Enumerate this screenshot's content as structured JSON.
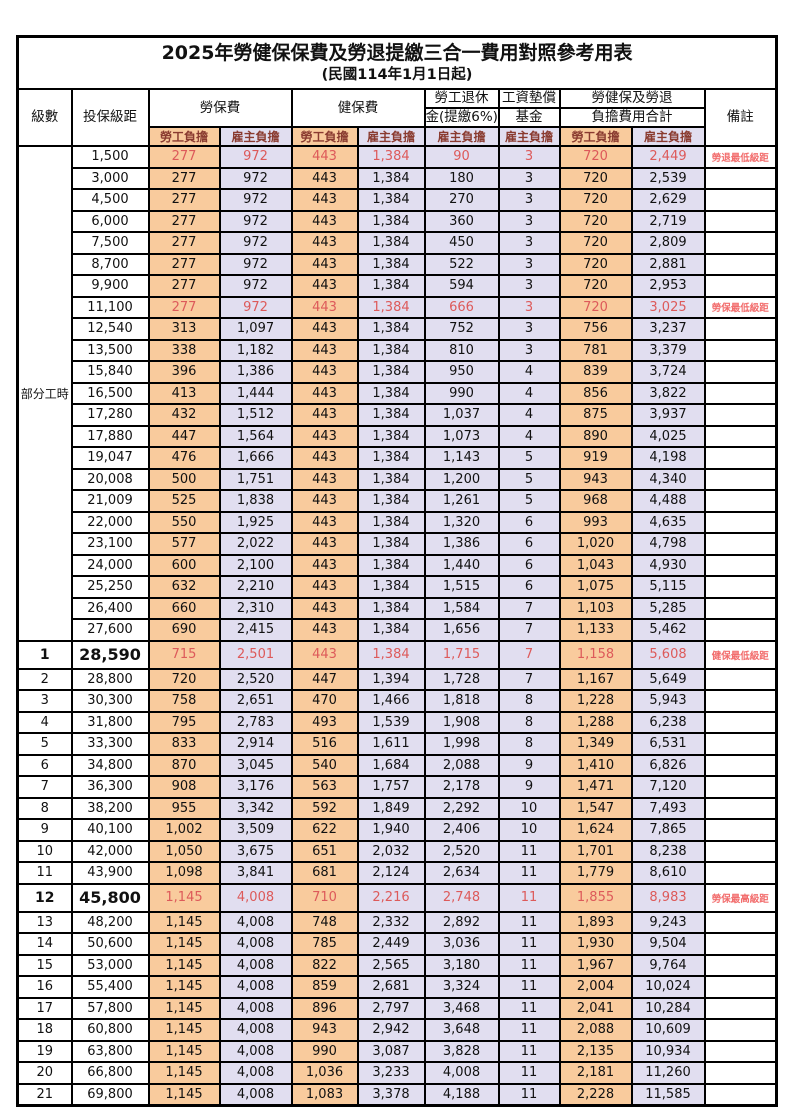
{
  "title": "2025年勞健保保費及勞退提繳三合一費用對照參考用表",
  "subtitle": "(民國114年1月1日起)",
  "columns": {
    "level": "級數",
    "bracket": "投保級距",
    "labor_group": "勞保費",
    "health_group": "健保費",
    "pension_line1": "勞工退休",
    "pension_line2": "金(提繳6%)",
    "fund_line1": "工資墊償",
    "fund_line2": "基金",
    "total_line1": "勞健保及勞退",
    "total_line2": "負擔費用合計",
    "note": "備註",
    "employee": "勞工負擔",
    "employer": "雇主負擔"
  },
  "part_time_label": "部分工時",
  "colors": {
    "employee_bg": "#f9cb9d",
    "employer_bg": "#e1def0",
    "highlight_value_red": "#dd5a5a",
    "note_red": "#f26d6d",
    "subheader_text": "#8a3b30",
    "border": "#000000"
  },
  "rows": [
    {
      "level": "",
      "bracket": "1,500",
      "labor_emp": "277",
      "labor_er": "972",
      "health_emp": "443",
      "health_er": "1,384",
      "pension": "90",
      "fund": "3",
      "total_emp": "720",
      "total_er": "2,449",
      "note": "勞退最低級距",
      "highlight": true,
      "emph": false
    },
    {
      "level": "",
      "bracket": "3,000",
      "labor_emp": "277",
      "labor_er": "972",
      "health_emp": "443",
      "health_er": "1,384",
      "pension": "180",
      "fund": "3",
      "total_emp": "720",
      "total_er": "2,539",
      "note": "",
      "highlight": false,
      "emph": false
    },
    {
      "level": "",
      "bracket": "4,500",
      "labor_emp": "277",
      "labor_er": "972",
      "health_emp": "443",
      "health_er": "1,384",
      "pension": "270",
      "fund": "3",
      "total_emp": "720",
      "total_er": "2,629",
      "note": "",
      "highlight": false,
      "emph": false
    },
    {
      "level": "",
      "bracket": "6,000",
      "labor_emp": "277",
      "labor_er": "972",
      "health_emp": "443",
      "health_er": "1,384",
      "pension": "360",
      "fund": "3",
      "total_emp": "720",
      "total_er": "2,719",
      "note": "",
      "highlight": false,
      "emph": false
    },
    {
      "level": "",
      "bracket": "7,500",
      "labor_emp": "277",
      "labor_er": "972",
      "health_emp": "443",
      "health_er": "1,384",
      "pension": "450",
      "fund": "3",
      "total_emp": "720",
      "total_er": "2,809",
      "note": "",
      "highlight": false,
      "emph": false
    },
    {
      "level": "",
      "bracket": "8,700",
      "labor_emp": "277",
      "labor_er": "972",
      "health_emp": "443",
      "health_er": "1,384",
      "pension": "522",
      "fund": "3",
      "total_emp": "720",
      "total_er": "2,881",
      "note": "",
      "highlight": false,
      "emph": false
    },
    {
      "level": "",
      "bracket": "9,900",
      "labor_emp": "277",
      "labor_er": "972",
      "health_emp": "443",
      "health_er": "1,384",
      "pension": "594",
      "fund": "3",
      "total_emp": "720",
      "total_er": "2,953",
      "note": "",
      "highlight": false,
      "emph": false
    },
    {
      "level": "",
      "bracket": "11,100",
      "labor_emp": "277",
      "labor_er": "972",
      "health_emp": "443",
      "health_er": "1,384",
      "pension": "666",
      "fund": "3",
      "total_emp": "720",
      "total_er": "3,025",
      "note": "勞保最低級距",
      "highlight": true,
      "emph": false
    },
    {
      "level": "",
      "bracket": "12,540",
      "labor_emp": "313",
      "labor_er": "1,097",
      "health_emp": "443",
      "health_er": "1,384",
      "pension": "752",
      "fund": "3",
      "total_emp": "756",
      "total_er": "3,237",
      "note": "",
      "highlight": false,
      "emph": false
    },
    {
      "level": "",
      "bracket": "13,500",
      "labor_emp": "338",
      "labor_er": "1,182",
      "health_emp": "443",
      "health_er": "1,384",
      "pension": "810",
      "fund": "3",
      "total_emp": "781",
      "total_er": "3,379",
      "note": "",
      "highlight": false,
      "emph": false
    },
    {
      "level": "",
      "bracket": "15,840",
      "labor_emp": "396",
      "labor_er": "1,386",
      "health_emp": "443",
      "health_er": "1,384",
      "pension": "950",
      "fund": "4",
      "total_emp": "839",
      "total_er": "3,724",
      "note": "",
      "highlight": false,
      "emph": false
    },
    {
      "level": "",
      "bracket": "16,500",
      "labor_emp": "413",
      "labor_er": "1,444",
      "health_emp": "443",
      "health_er": "1,384",
      "pension": "990",
      "fund": "4",
      "total_emp": "856",
      "total_er": "3,822",
      "note": "",
      "highlight": false,
      "emph": false
    },
    {
      "level": "",
      "bracket": "17,280",
      "labor_emp": "432",
      "labor_er": "1,512",
      "health_emp": "443",
      "health_er": "1,384",
      "pension": "1,037",
      "fund": "4",
      "total_emp": "875",
      "total_er": "3,937",
      "note": "",
      "highlight": false,
      "emph": false
    },
    {
      "level": "",
      "bracket": "17,880",
      "labor_emp": "447",
      "labor_er": "1,564",
      "health_emp": "443",
      "health_er": "1,384",
      "pension": "1,073",
      "fund": "4",
      "total_emp": "890",
      "total_er": "4,025",
      "note": "",
      "highlight": false,
      "emph": false
    },
    {
      "level": "",
      "bracket": "19,047",
      "labor_emp": "476",
      "labor_er": "1,666",
      "health_emp": "443",
      "health_er": "1,384",
      "pension": "1,143",
      "fund": "5",
      "total_emp": "919",
      "total_er": "4,198",
      "note": "",
      "highlight": false,
      "emph": false
    },
    {
      "level": "",
      "bracket": "20,008",
      "labor_emp": "500",
      "labor_er": "1,751",
      "health_emp": "443",
      "health_er": "1,384",
      "pension": "1,200",
      "fund": "5",
      "total_emp": "943",
      "total_er": "4,340",
      "note": "",
      "highlight": false,
      "emph": false
    },
    {
      "level": "",
      "bracket": "21,009",
      "labor_emp": "525",
      "labor_er": "1,838",
      "health_emp": "443",
      "health_er": "1,384",
      "pension": "1,261",
      "fund": "5",
      "total_emp": "968",
      "total_er": "4,488",
      "note": "",
      "highlight": false,
      "emph": false
    },
    {
      "level": "",
      "bracket": "22,000",
      "labor_emp": "550",
      "labor_er": "1,925",
      "health_emp": "443",
      "health_er": "1,384",
      "pension": "1,320",
      "fund": "6",
      "total_emp": "993",
      "total_er": "4,635",
      "note": "",
      "highlight": false,
      "emph": false
    },
    {
      "level": "",
      "bracket": "23,100",
      "labor_emp": "577",
      "labor_er": "2,022",
      "health_emp": "443",
      "health_er": "1,384",
      "pension": "1,386",
      "fund": "6",
      "total_emp": "1,020",
      "total_er": "4,798",
      "note": "",
      "highlight": false,
      "emph": false
    },
    {
      "level": "",
      "bracket": "24,000",
      "labor_emp": "600",
      "labor_er": "2,100",
      "health_emp": "443",
      "health_er": "1,384",
      "pension": "1,440",
      "fund": "6",
      "total_emp": "1,043",
      "total_er": "4,930",
      "note": "",
      "highlight": false,
      "emph": false
    },
    {
      "level": "",
      "bracket": "25,250",
      "labor_emp": "632",
      "labor_er": "2,210",
      "health_emp": "443",
      "health_er": "1,384",
      "pension": "1,515",
      "fund": "6",
      "total_emp": "1,075",
      "total_er": "5,115",
      "note": "",
      "highlight": false,
      "emph": false
    },
    {
      "level": "",
      "bracket": "26,400",
      "labor_emp": "660",
      "labor_er": "2,310",
      "health_emp": "443",
      "health_er": "1,384",
      "pension": "1,584",
      "fund": "7",
      "total_emp": "1,103",
      "total_er": "5,285",
      "note": "",
      "highlight": false,
      "emph": false
    },
    {
      "level": "",
      "bracket": "27,600",
      "labor_emp": "690",
      "labor_er": "2,415",
      "health_emp": "443",
      "health_er": "1,384",
      "pension": "1,656",
      "fund": "7",
      "total_emp": "1,133",
      "total_er": "5,462",
      "note": "",
      "highlight": false,
      "emph": false
    },
    {
      "level": "1",
      "bracket": "28,590",
      "labor_emp": "715",
      "labor_er": "2,501",
      "health_emp": "443",
      "health_er": "1,384",
      "pension": "1,715",
      "fund": "7",
      "total_emp": "1,158",
      "total_er": "5,608",
      "note": "健保最低級距",
      "highlight": true,
      "emph": true
    },
    {
      "level": "2",
      "bracket": "28,800",
      "labor_emp": "720",
      "labor_er": "2,520",
      "health_emp": "447",
      "health_er": "1,394",
      "pension": "1,728",
      "fund": "7",
      "total_emp": "1,167",
      "total_er": "5,649",
      "note": "",
      "highlight": false,
      "emph": false
    },
    {
      "level": "3",
      "bracket": "30,300",
      "labor_emp": "758",
      "labor_er": "2,651",
      "health_emp": "470",
      "health_er": "1,466",
      "pension": "1,818",
      "fund": "8",
      "total_emp": "1,228",
      "total_er": "5,943",
      "note": "",
      "highlight": false,
      "emph": false
    },
    {
      "level": "4",
      "bracket": "31,800",
      "labor_emp": "795",
      "labor_er": "2,783",
      "health_emp": "493",
      "health_er": "1,539",
      "pension": "1,908",
      "fund": "8",
      "total_emp": "1,288",
      "total_er": "6,238",
      "note": "",
      "highlight": false,
      "emph": false
    },
    {
      "level": "5",
      "bracket": "33,300",
      "labor_emp": "833",
      "labor_er": "2,914",
      "health_emp": "516",
      "health_er": "1,611",
      "pension": "1,998",
      "fund": "8",
      "total_emp": "1,349",
      "total_er": "6,531",
      "note": "",
      "highlight": false,
      "emph": false
    },
    {
      "level": "6",
      "bracket": "34,800",
      "labor_emp": "870",
      "labor_er": "3,045",
      "health_emp": "540",
      "health_er": "1,684",
      "pension": "2,088",
      "fund": "9",
      "total_emp": "1,410",
      "total_er": "6,826",
      "note": "",
      "highlight": false,
      "emph": false
    },
    {
      "level": "7",
      "bracket": "36,300",
      "labor_emp": "908",
      "labor_er": "3,176",
      "health_emp": "563",
      "health_er": "1,757",
      "pension": "2,178",
      "fund": "9",
      "total_emp": "1,471",
      "total_er": "7,120",
      "note": "",
      "highlight": false,
      "emph": false
    },
    {
      "level": "8",
      "bracket": "38,200",
      "labor_emp": "955",
      "labor_er": "3,342",
      "health_emp": "592",
      "health_er": "1,849",
      "pension": "2,292",
      "fund": "10",
      "total_emp": "1,547",
      "total_er": "7,493",
      "note": "",
      "highlight": false,
      "emph": false
    },
    {
      "level": "9",
      "bracket": "40,100",
      "labor_emp": "1,002",
      "labor_er": "3,509",
      "health_emp": "622",
      "health_er": "1,940",
      "pension": "2,406",
      "fund": "10",
      "total_emp": "1,624",
      "total_er": "7,865",
      "note": "",
      "highlight": false,
      "emph": false
    },
    {
      "level": "10",
      "bracket": "42,000",
      "labor_emp": "1,050",
      "labor_er": "3,675",
      "health_emp": "651",
      "health_er": "2,032",
      "pension": "2,520",
      "fund": "11",
      "total_emp": "1,701",
      "total_er": "8,238",
      "note": "",
      "highlight": false,
      "emph": false
    },
    {
      "level": "11",
      "bracket": "43,900",
      "labor_emp": "1,098",
      "labor_er": "3,841",
      "health_emp": "681",
      "health_er": "2,124",
      "pension": "2,634",
      "fund": "11",
      "total_emp": "1,779",
      "total_er": "8,610",
      "note": "",
      "highlight": false,
      "emph": false
    },
    {
      "level": "12",
      "bracket": "45,800",
      "labor_emp": "1,145",
      "labor_er": "4,008",
      "health_emp": "710",
      "health_er": "2,216",
      "pension": "2,748",
      "fund": "11",
      "total_emp": "1,855",
      "total_er": "8,983",
      "note": "勞保最高級距",
      "highlight": true,
      "emph": true
    },
    {
      "level": "13",
      "bracket": "48,200",
      "labor_emp": "1,145",
      "labor_er": "4,008",
      "health_emp": "748",
      "health_er": "2,332",
      "pension": "2,892",
      "fund": "11",
      "total_emp": "1,893",
      "total_er": "9,243",
      "note": "",
      "highlight": false,
      "emph": false
    },
    {
      "level": "14",
      "bracket": "50,600",
      "labor_emp": "1,145",
      "labor_er": "4,008",
      "health_emp": "785",
      "health_er": "2,449",
      "pension": "3,036",
      "fund": "11",
      "total_emp": "1,930",
      "total_er": "9,504",
      "note": "",
      "highlight": false,
      "emph": false
    },
    {
      "level": "15",
      "bracket": "53,000",
      "labor_emp": "1,145",
      "labor_er": "4,008",
      "health_emp": "822",
      "health_er": "2,565",
      "pension": "3,180",
      "fund": "11",
      "total_emp": "1,967",
      "total_er": "9,764",
      "note": "",
      "highlight": false,
      "emph": false
    },
    {
      "level": "16",
      "bracket": "55,400",
      "labor_emp": "1,145",
      "labor_er": "4,008",
      "health_emp": "859",
      "health_er": "2,681",
      "pension": "3,324",
      "fund": "11",
      "total_emp": "2,004",
      "total_er": "10,024",
      "note": "",
      "highlight": false,
      "emph": false
    },
    {
      "level": "17",
      "bracket": "57,800",
      "labor_emp": "1,145",
      "labor_er": "4,008",
      "health_emp": "896",
      "health_er": "2,797",
      "pension": "3,468",
      "fund": "11",
      "total_emp": "2,041",
      "total_er": "10,284",
      "note": "",
      "highlight": false,
      "emph": false
    },
    {
      "level": "18",
      "bracket": "60,800",
      "labor_emp": "1,145",
      "labor_er": "4,008",
      "health_emp": "943",
      "health_er": "2,942",
      "pension": "3,648",
      "fund": "11",
      "total_emp": "2,088",
      "total_er": "10,609",
      "note": "",
      "highlight": false,
      "emph": false
    },
    {
      "level": "19",
      "bracket": "63,800",
      "labor_emp": "1,145",
      "labor_er": "4,008",
      "health_emp": "990",
      "health_er": "3,087",
      "pension": "3,828",
      "fund": "11",
      "total_emp": "2,135",
      "total_er": "10,934",
      "note": "",
      "highlight": false,
      "emph": false
    },
    {
      "level": "20",
      "bracket": "66,800",
      "labor_emp": "1,145",
      "labor_er": "4,008",
      "health_emp": "1,036",
      "health_er": "3,233",
      "pension": "4,008",
      "fund": "11",
      "total_emp": "2,181",
      "total_er": "11,260",
      "note": "",
      "highlight": false,
      "emph": false
    },
    {
      "level": "21",
      "bracket": "69,800",
      "labor_emp": "1,145",
      "labor_er": "4,008",
      "health_emp": "1,083",
      "health_er": "3,378",
      "pension": "4,188",
      "fund": "11",
      "total_emp": "2,228",
      "total_er": "11,585",
      "note": "",
      "highlight": false,
      "emph": false
    }
  ]
}
